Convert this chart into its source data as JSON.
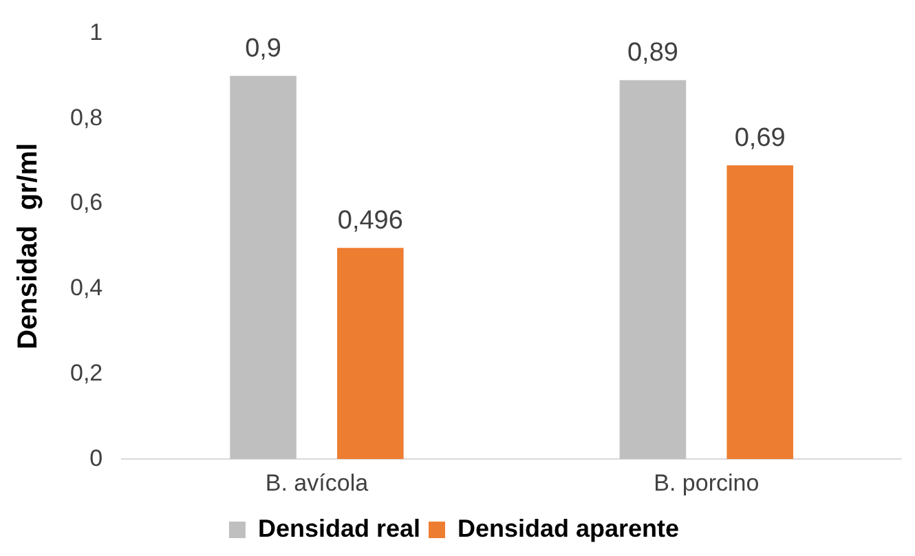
{
  "chart_data": {
    "type": "bar",
    "ylabel": "Densidad  gr/ml",
    "categories": [
      "B. avícola",
      "B. porcino"
    ],
    "series": [
      {
        "name": "Densidad real",
        "color": "#bfbfbf",
        "values": [
          0.9,
          0.89
        ],
        "value_labels": [
          "0,9",
          "0,89"
        ]
      },
      {
        "name": "Densidad aparente",
        "color": "#ed7d31",
        "values": [
          0.496,
          0.69
        ],
        "value_labels": [
          "0,496",
          "0,69"
        ]
      }
    ],
    "ylim": [
      0,
      1
    ],
    "yticks": [
      {
        "value": 0,
        "label": "0"
      },
      {
        "value": 0.2,
        "label": "0,2"
      },
      {
        "value": 0.4,
        "label": "0,4"
      },
      {
        "value": 0.6,
        "label": "0,6"
      },
      {
        "value": 0.8,
        "label": "0,8"
      },
      {
        "value": 1,
        "label": "1"
      }
    ],
    "grid": false,
    "legend": "bottom"
  }
}
